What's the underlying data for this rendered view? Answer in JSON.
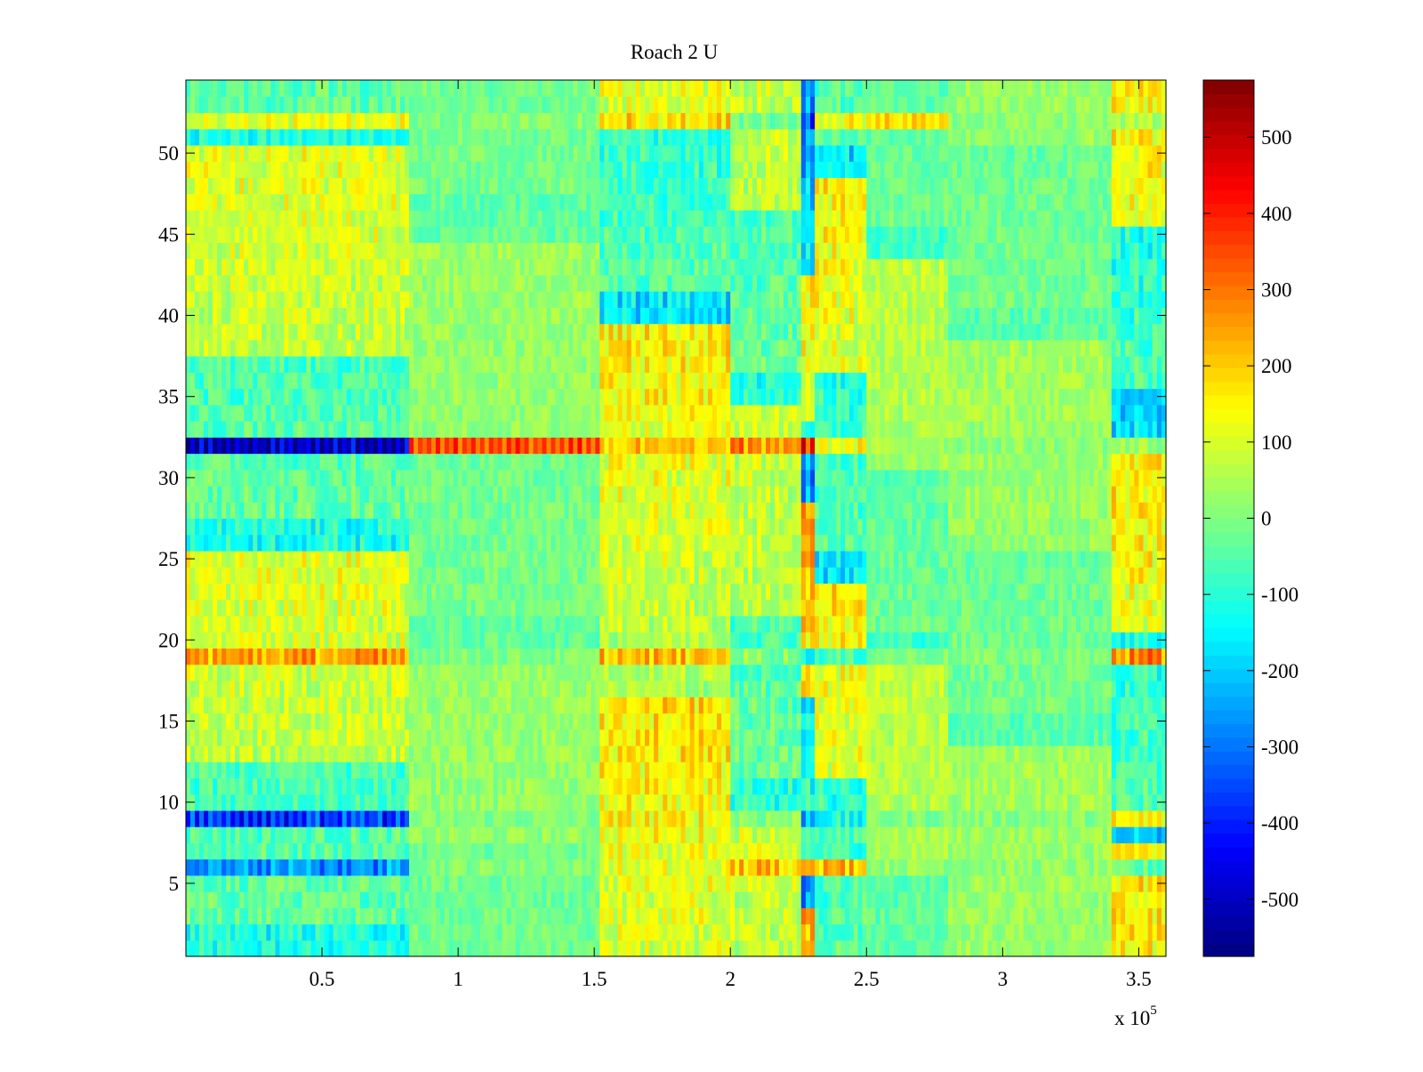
{
  "chart_data": {
    "type": "heatmap",
    "title": "Roach 2 U",
    "xlabel": "",
    "ylabel": "",
    "x_multiplier_label": "x 10",
    "x_multiplier_exponent": "5",
    "x_range": [
      0,
      3.6
    ],
    "x_tick_values": [
      0.5,
      1,
      1.5,
      2,
      2.5,
      3,
      3.5
    ],
    "x_tick_labels": [
      "0.5",
      "1",
      "1.5",
      "2",
      "2.5",
      "3",
      "3.5"
    ],
    "y_range": [
      0.5,
      54.5
    ],
    "y_tick_values": [
      5,
      10,
      15,
      20,
      25,
      30,
      35,
      40,
      45,
      50
    ],
    "y_tick_labels": [
      "5",
      "10",
      "15",
      "20",
      "25",
      "30",
      "35",
      "40",
      "45",
      "50"
    ],
    "colormap": "jet",
    "color_range": [
      -575,
      575
    ],
    "colorbar": {
      "position": "right",
      "tick_values": [
        500,
        400,
        300,
        200,
        100,
        0,
        -100,
        -200,
        -300,
        -400,
        -500
      ],
      "tick_labels": [
        "500",
        "400",
        "300",
        "200",
        "100",
        "0",
        "-100",
        "-200",
        "-300",
        "-400",
        "-500"
      ]
    },
    "rows": 54,
    "row_values_approx": {
      "column_blocks_x_1e5": [
        [
          0,
          0.82
        ],
        [
          0.82,
          1.52
        ],
        [
          1.52,
          2.0
        ],
        [
          2.0,
          2.26
        ],
        [
          2.26,
          2.31
        ],
        [
          2.31,
          2.5
        ],
        [
          2.5,
          2.8
        ],
        [
          2.8,
          3.4
        ],
        [
          3.4,
          3.6
        ]
      ],
      "notable_rows": {
        "32": [
          -575,
          400,
          220,
          300,
          450,
          150,
          50,
          20,
          30
        ],
        "9": [
          -420,
          0,
          170,
          20,
          -250,
          -150,
          0,
          10,
          160
        ],
        "19": [
          280,
          0,
          240,
          10,
          -150,
          -80,
          0,
          0,
          300
        ],
        "52": [
          130,
          10,
          200,
          0,
          -400,
          150,
          200,
          20,
          50
        ],
        "6": [
          -300,
          10,
          120,
          240,
          300,
          260,
          30,
          20,
          -50
        ]
      }
    }
  }
}
